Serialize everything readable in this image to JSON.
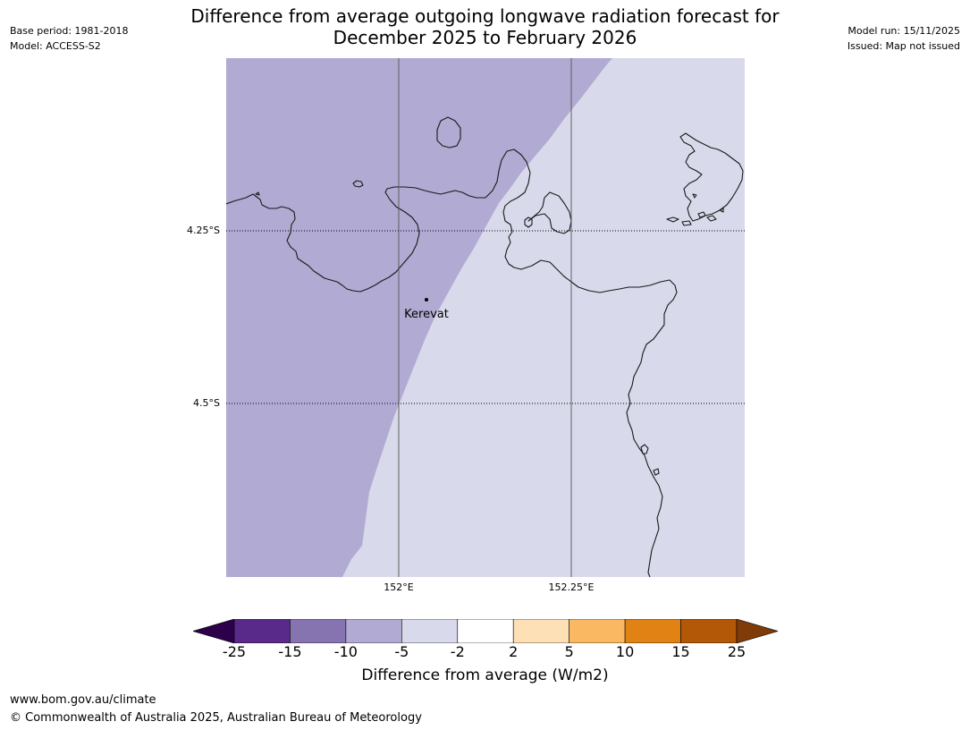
{
  "title_line1": "Difference from average outgoing longwave radiation forecast for",
  "title_line2": "December 2025 to February 2026",
  "meta_left": {
    "base_period": "Base period: 1981-2018",
    "model": "Model: ACCESS-S2"
  },
  "meta_right": {
    "model_run": "Model run: 15/11/2025",
    "issued": "Issued: Map not issued"
  },
  "map": {
    "lat_labels": [
      "4.25°S",
      "4.5°S"
    ],
    "lon_labels": [
      "152°E",
      "152.25°E"
    ],
    "place": "Kerevat",
    "colors": {
      "minus_10_to_minus_5": "#b1aad2",
      "minus_5_to_minus_2": "#d8d9ea",
      "coast": "#1a1a1a"
    }
  },
  "colorbar": {
    "label": "Difference from average (W/m2)",
    "ticks": [
      "-25",
      "-15",
      "-10",
      "-5",
      "-2",
      "2",
      "5",
      "10",
      "15",
      "25"
    ],
    "colors": [
      "#5a2a8a",
      "#8574b0",
      "#b1aad2",
      "#d8d9ea",
      "#ffffff",
      "#fee0b6",
      "#fbb863",
      "#e08214",
      "#b35806"
    ],
    "under_color": "#2d004b",
    "over_color": "#7f3b08"
  },
  "footer": {
    "url": "www.bom.gov.au/climate",
    "copyright": "© Commonwealth of Australia 2025, Australian Bureau of Meteorology"
  }
}
